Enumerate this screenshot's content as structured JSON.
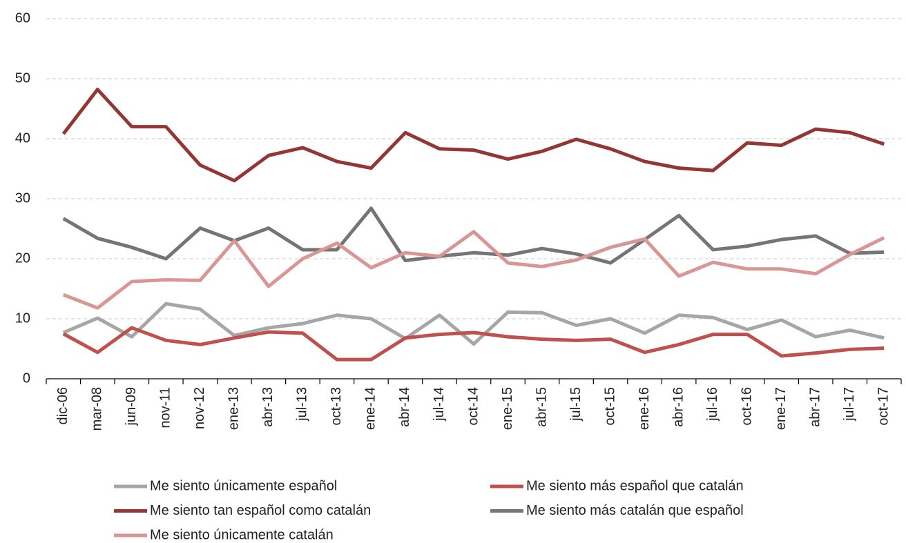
{
  "chart_data": {
    "type": "line",
    "categories": [
      "dic-06",
      "mar-08",
      "jun-09",
      "nov-11",
      "nov-12",
      "ene-13",
      "abr-13",
      "jul-13",
      "oct-13",
      "ene-14",
      "abr-14",
      "jul-14",
      "oct-14",
      "ene-15",
      "abr-15",
      "jul-15",
      "oct-15",
      "ene-16",
      "abr-16",
      "jul-16",
      "oct-16",
      "ene-17",
      "abr-17",
      "jul-17",
      "oct-17"
    ],
    "series": [
      {
        "name": "Me siento únicamente español",
        "color": "#a6a6a6",
        "values": [
          7.7,
          10.1,
          7.0,
          12.5,
          11.6,
          7.2,
          8.5,
          9.2,
          10.6,
          10.0,
          6.7,
          10.6,
          5.8,
          11.1,
          11.0,
          8.9,
          10.0,
          7.6,
          10.6,
          10.2,
          8.2,
          9.8,
          7.0,
          8.1,
          6.8
        ]
      },
      {
        "name": "Me siento más español que catalán",
        "color": "#c0504d",
        "values": [
          7.5,
          4.4,
          8.5,
          6.4,
          5.7,
          6.8,
          7.8,
          7.6,
          3.2,
          3.2,
          6.8,
          7.4,
          7.7,
          7.0,
          6.6,
          6.4,
          6.6,
          4.4,
          5.7,
          7.4,
          7.4,
          3.8,
          4.3,
          4.9,
          5.1
        ]
      },
      {
        "name": "Me siento tan español como catalán",
        "color": "#943634",
        "values": [
          40.8,
          48.2,
          42.0,
          42.0,
          35.6,
          33.0,
          37.2,
          38.5,
          36.2,
          35.1,
          41.0,
          38.3,
          38.1,
          36.6,
          37.9,
          39.9,
          38.3,
          36.2,
          35.1,
          34.7,
          39.3,
          38.9,
          41.6,
          41.0,
          39.1
        ]
      },
      {
        "name": "Me siento más catalán que español",
        "color": "#757575",
        "values": [
          26.7,
          23.4,
          21.9,
          20.0,
          25.1,
          23.0,
          25.1,
          21.5,
          21.5,
          28.4,
          19.7,
          20.4,
          21.0,
          20.6,
          21.7,
          20.8,
          19.3,
          23.2,
          27.2,
          21.5,
          22.1,
          23.2,
          23.8,
          20.9,
          21.1
        ]
      },
      {
        "name": "Me siento únicamente catalán",
        "color": "#d99694",
        "values": [
          14.0,
          11.8,
          16.2,
          16.5,
          16.4,
          23.0,
          15.4,
          20.0,
          22.6,
          18.5,
          21.0,
          20.4,
          24.5,
          19.3,
          18.7,
          19.8,
          21.9,
          23.3,
          17.1,
          19.4,
          18.3,
          18.3,
          17.5,
          20.7,
          23.5
        ]
      }
    ],
    "ylim": [
      0,
      60
    ],
    "yticks": [
      0,
      10,
      20,
      30,
      40,
      50,
      60
    ],
    "grid": true,
    "legend": "bottom"
  }
}
